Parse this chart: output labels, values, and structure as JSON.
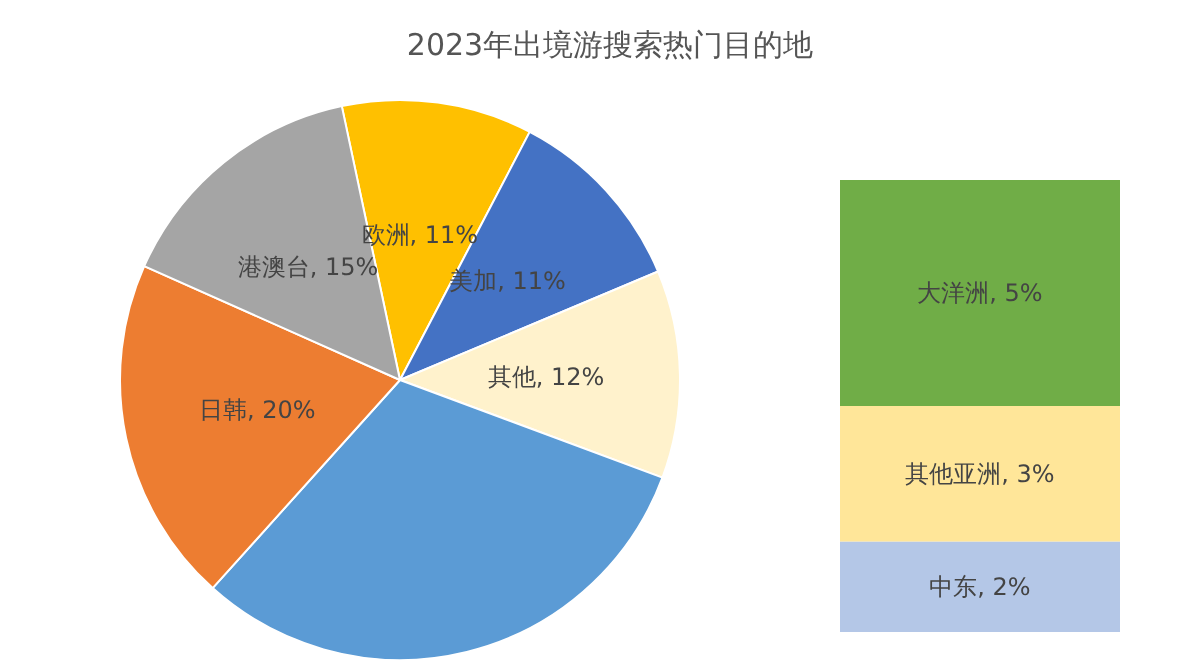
{
  "chart_data": [
    {
      "type": "pie",
      "title": "2023年出境游搜索热门目的地",
      "categories": [
        "欧洲",
        "美加",
        "其他",
        null,
        "日韩",
        "港澳台"
      ],
      "values": [
        11,
        11,
        12,
        31,
        20,
        15
      ],
      "value_labels": [
        ", 11%",
        ", 11%",
        ", 12%",
        null,
        ", 20%",
        ", 15%"
      ],
      "colors": [
        "#ffc000",
        "#4472c4",
        "#fff2cc",
        "#5b9bd5",
        "#ed7d31",
        "#a5a5a5"
      ]
    },
    {
      "type": "bar",
      "stacked": true,
      "categories": [
        null
      ],
      "series": [
        {
          "name": "中东",
          "color": "#b4c7e7",
          "values": [
            2
          ],
          "value_labels": [
            ", 2%"
          ]
        },
        {
          "name": "其他亚洲",
          "color": "#ffe699",
          "values": [
            3
          ],
          "value_labels": [
            ", 3%"
          ]
        },
        {
          "name": "大洋洲",
          "color": "#70ad47",
          "values": [
            5
          ],
          "value_labels": [
            ", 5%"
          ]
        }
      ]
    }
  ]
}
